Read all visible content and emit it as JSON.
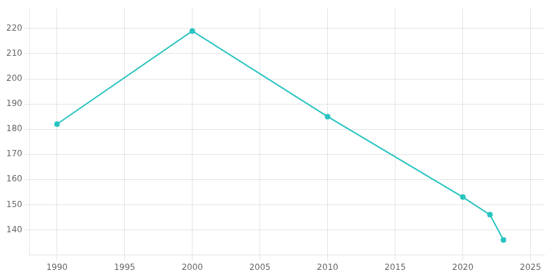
{
  "chart_data": {
    "type": "line",
    "x": [
      1990,
      2000,
      2010,
      2020,
      2022,
      2023
    ],
    "values": [
      182,
      219,
      185,
      153,
      146,
      136
    ],
    "color": "#29c4c0",
    "marker": "o",
    "xlim": [
      1988,
      2026
    ],
    "xticks": [
      1990,
      1995,
      2000,
      2005,
      2010,
      2015,
      2020,
      2025
    ],
    "ylim": [
      130,
      228
    ],
    "yticks": [
      140,
      150,
      160,
      170,
      180,
      190,
      200,
      210,
      220
    ],
    "grid": true
  }
}
